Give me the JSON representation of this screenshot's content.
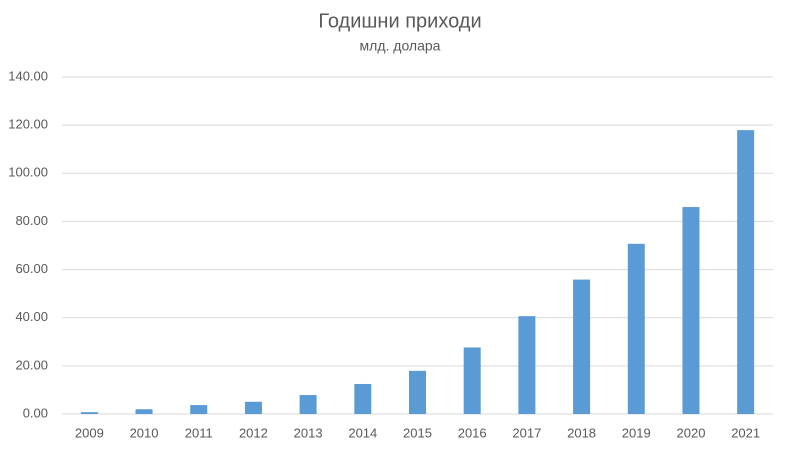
{
  "chart_data": {
    "type": "bar",
    "title": "Годишни приходи",
    "subtitle": "млд. долара",
    "categories": [
      "2009",
      "2010",
      "2011",
      "2012",
      "2013",
      "2014",
      "2015",
      "2016",
      "2017",
      "2018",
      "2019",
      "2020",
      "2021"
    ],
    "values": [
      0.78,
      1.97,
      3.71,
      5.09,
      7.87,
      12.47,
      17.93,
      27.64,
      40.65,
      55.84,
      70.7,
      85.97,
      117.93
    ],
    "color": "#5b9bd5",
    "ylim": [
      0,
      140
    ],
    "yticks": [
      {
        "value": 0,
        "label": "0.00"
      },
      {
        "value": 20,
        "label": "20.00"
      },
      {
        "value": 40,
        "label": "40.00"
      },
      {
        "value": 60,
        "label": "60.00"
      },
      {
        "value": 80,
        "label": "80.00"
      },
      {
        "value": 100,
        "label": "100.00"
      },
      {
        "value": 120,
        "label": "120.00"
      },
      {
        "value": 140,
        "label": "140.00"
      }
    ],
    "grid": true
  }
}
